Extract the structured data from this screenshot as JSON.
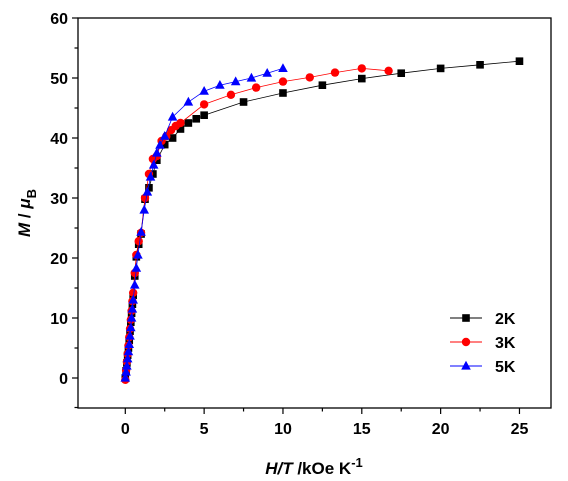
{
  "chart_data": {
    "type": "scatter",
    "xlabel": {
      "main": "H/T",
      "unit": " /kOe K",
      "exp": "-1"
    },
    "ylabel": {
      "main": "M",
      "sep": " / ",
      "unit": "μ",
      "sub": "B"
    },
    "xlim": [
      -3,
      27
    ],
    "ylim": [
      -5,
      60
    ],
    "xticks": [
      0,
      5,
      10,
      15,
      20,
      25
    ],
    "yticks": [
      0,
      10,
      20,
      30,
      40,
      50,
      60
    ],
    "legend_position": "lower-right",
    "grid": false,
    "series": [
      {
        "name": "2K",
        "color": "#000000",
        "marker": "square",
        "x": [
          0,
          0.05,
          0.1,
          0.15,
          0.2,
          0.25,
          0.3,
          0.35,
          0.4,
          0.45,
          0.5,
          0.6,
          0.7,
          0.85,
          1.0,
          1.25,
          1.5,
          1.75,
          2.0,
          2.5,
          3.0,
          3.5,
          4.0,
          4.5,
          5.0,
          7.5,
          10.0,
          12.5,
          15.0,
          17.5,
          20.0,
          22.5,
          25.0
        ],
        "y": [
          0,
          1.2,
          2.5,
          3.8,
          5.0,
          6.3,
          7.8,
          9.3,
          10.8,
          12.3,
          13.8,
          17.0,
          20.2,
          22.3,
          24.0,
          29.8,
          31.7,
          34.0,
          36.3,
          38.9,
          40.0,
          41.5,
          42.5,
          43.2,
          43.8,
          46.0,
          47.5,
          48.8,
          49.9,
          50.8,
          51.6,
          52.2,
          52.8
        ]
      },
      {
        "name": "3K",
        "color": "#ff0000",
        "marker": "circle",
        "x": [
          0,
          0.05,
          0.1,
          0.15,
          0.2,
          0.25,
          0.3,
          0.35,
          0.4,
          0.45,
          0.5,
          0.6,
          0.7,
          0.85,
          1.0,
          1.25,
          1.5,
          1.75,
          2.0,
          2.3,
          2.6,
          2.9,
          3.2,
          3.5,
          5.0,
          6.7,
          8.3,
          10.0,
          11.7,
          13.3,
          15.0,
          16.7
        ],
        "y": [
          -0.3,
          1.3,
          2.7,
          4.0,
          5.4,
          6.8,
          8.2,
          9.7,
          11.2,
          12.8,
          14.2,
          17.5,
          20.5,
          22.8,
          24.2,
          30.0,
          34.0,
          36.5,
          37.0,
          39.5,
          40.3,
          41.3,
          42.0,
          42.5,
          45.6,
          47.2,
          48.4,
          49.4,
          50.1,
          50.9,
          51.6,
          51.2
        ]
      },
      {
        "name": "5K",
        "color": "#0000ff",
        "marker": "triangle",
        "x": [
          0,
          0.05,
          0.1,
          0.15,
          0.2,
          0.25,
          0.3,
          0.35,
          0.4,
          0.45,
          0.5,
          0.6,
          0.7,
          0.8,
          1.0,
          1.2,
          1.4,
          1.6,
          1.8,
          2.0,
          2.2,
          2.5,
          3.0,
          4.0,
          5.0,
          6.0,
          7.0,
          8.0,
          9.0,
          10.0
        ],
        "y": [
          0,
          1.0,
          2.0,
          3.2,
          4.4,
          5.6,
          7.0,
          8.4,
          10.0,
          11.5,
          13.0,
          15.5,
          18.3,
          20.5,
          24.3,
          28.0,
          31.0,
          33.5,
          35.5,
          37.5,
          38.8,
          40.3,
          43.5,
          46.0,
          47.8,
          48.8,
          49.4,
          50.0,
          50.8,
          51.6
        ]
      }
    ]
  }
}
